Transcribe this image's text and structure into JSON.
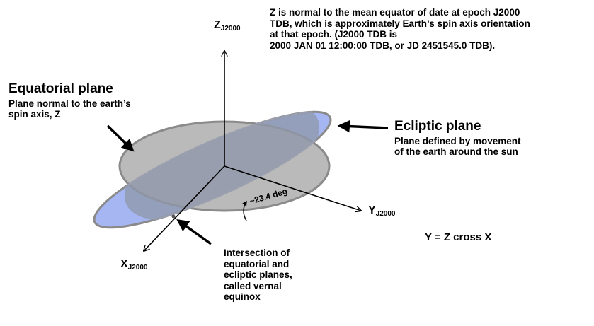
{
  "axes": {
    "z": {
      "main": "Z",
      "sub": "J2000"
    },
    "y": {
      "main": "Y",
      "sub": "J2000"
    },
    "x": {
      "main": "X",
      "sub": "J2000"
    }
  },
  "z_note": [
    "Z is normal to the mean equator of date at epoch J2000",
    "TDB, which is approximately Earth’s spin axis orientation",
    "at that epoch.  (J2000 TDB is",
    "2000 JAN 01 12:00:00 TDB, or JD 2451545.0  TDB)."
  ],
  "equatorial": {
    "title": "Equatorial plane",
    "desc": [
      "Plane normal to the earth’s",
      "spin axis, Z"
    ]
  },
  "ecliptic": {
    "title": "Ecliptic plane",
    "desc": [
      "Plane defined by movement",
      "of the earth around the sun"
    ]
  },
  "angle_label": "~23.4 deg",
  "cross_note": "Y = Z cross X",
  "equinox_note": [
    "Intersection of",
    "equatorial and",
    "ecliptic planes,",
    "called vernal",
    "equinox"
  ],
  "colors": {
    "equatorial_fill": "#b4b4b4",
    "ecliptic_fill": "#a5b6f2",
    "overlap_fill": "#8f97a9",
    "plane_edge": "#8a8a8a"
  }
}
